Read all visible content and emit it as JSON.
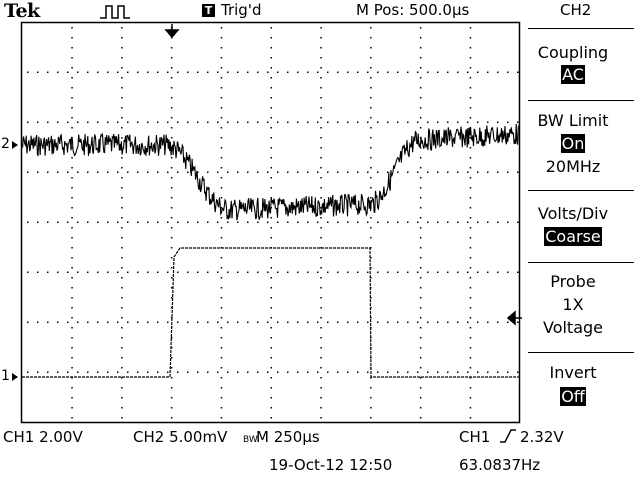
{
  "header": {
    "brand": "Tek",
    "trigger_state": "Trig'd",
    "trigger_icon": "T",
    "m_pos": "M Pos: 500.0µs",
    "menu_channel": "CH2"
  },
  "menu": [
    {
      "label": "Coupling",
      "value": "AC"
    },
    {
      "label": "BW Limit",
      "value": "On",
      "extra": "20MHz"
    },
    {
      "label": "Volts/Div",
      "value": "Coarse"
    },
    {
      "label": "Probe",
      "value": "1X",
      "extra": "Voltage"
    },
    {
      "label": "Invert",
      "value": "Off"
    }
  ],
  "markers": {
    "ch1": "1",
    "ch2": "2"
  },
  "status": {
    "ch1_scale": "CH1  2.00V",
    "ch2_scale": "CH2  5.00mV",
    "bw_icon": "BW",
    "timebase": "M 250µs",
    "trigger_source": "CH1",
    "trigger_level": "2.32V",
    "date_time": "19-Oct-12 12:50",
    "frequency": "63.0837Hz"
  },
  "colors": {
    "trace": "#000000",
    "grid": "#000000",
    "background": "#ffffff"
  },
  "icons": [
    "pulse-icon",
    "trigger-icon",
    "trigger-position-marker-icon",
    "trigger-level-marker-icon",
    "rising-edge-icon"
  ]
}
